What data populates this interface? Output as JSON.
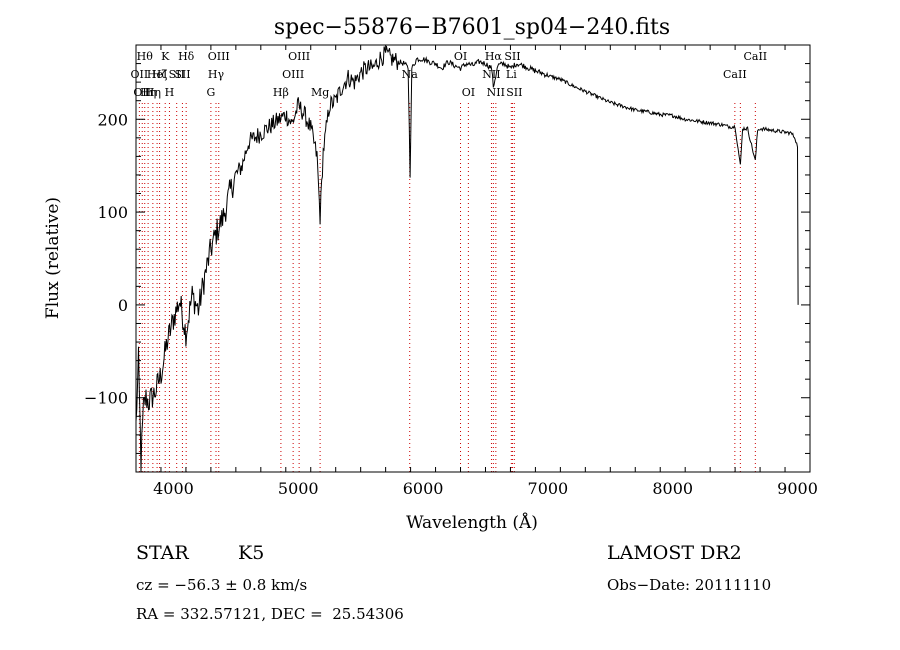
{
  "chart_data": {
    "type": "line",
    "title": "spec−55876−B7601_sp04−240.fits",
    "xlabel": "Wavelength (Å)",
    "ylabel": "Flux (relative)",
    "xlim": [
      3700,
      9100
    ],
    "ylim": [
      -180,
      280
    ],
    "xticks": [
      4000,
      5000,
      6000,
      7000,
      8000,
      9000
    ],
    "yticks": [
      -100,
      0,
      100,
      200
    ],
    "xtick_labels": [
      "4000",
      "5000",
      "6000",
      "7000",
      "8000",
      "9000"
    ],
    "ytick_labels": [
      "−100",
      "0",
      "100",
      "200"
    ],
    "series": [
      {
        "color": "#000000",
        "x": [
          3700,
          3720,
          3740,
          3760,
          3780,
          3800,
          3850,
          3900,
          3950,
          4000,
          4050,
          4100,
          4150,
          4200,
          4250,
          4300,
          4350,
          4400,
          4450,
          4500,
          4550,
          4600,
          4650,
          4700,
          4750,
          4800,
          4850,
          4900,
          4950,
          5000,
          5050,
          5100,
          5150,
          5175,
          5200,
          5250,
          5300,
          5350,
          5400,
          5450,
          5500,
          5550,
          5600,
          5650,
          5700,
          5750,
          5800,
          5850,
          5880,
          5890,
          5896,
          5910,
          5950,
          6000,
          6050,
          6100,
          6150,
          6200,
          6250,
          6300,
          6350,
          6400,
          6450,
          6500,
          6550,
          6563,
          6600,
          6650,
          6700,
          6750,
          6800,
          6850,
          6900,
          6950,
          7000,
          7100,
          7200,
          7300,
          7400,
          7500,
          7600,
          7700,
          7800,
          7900,
          8000,
          8100,
          8200,
          8300,
          8400,
          8450,
          8500,
          8542,
          8560,
          8600,
          8662,
          8680,
          8700,
          8800,
          8900,
          8950,
          8980,
          9000,
          9005
        ],
        "y": [
          -130,
          -60,
          -170,
          -110,
          -100,
          -105,
          -95,
          -75,
          -40,
          -15,
          5,
          -30,
          10,
          -5,
          30,
          60,
          80,
          95,
          120,
          140,
          150,
          175,
          180,
          185,
          190,
          195,
          200,
          205,
          195,
          215,
          205,
          190,
          160,
          95,
          165,
          215,
          220,
          235,
          245,
          240,
          250,
          255,
          255,
          265,
          270,
          265,
          262,
          260,
          255,
          190,
          140,
          255,
          265,
          265,
          262,
          260,
          255,
          262,
          258,
          255,
          260,
          258,
          262,
          260,
          255,
          235,
          258,
          260,
          255,
          260,
          258,
          255,
          252,
          250,
          247,
          243,
          236,
          230,
          224,
          218,
          214,
          210,
          208,
          205,
          204,
          200,
          198,
          196,
          194,
          192,
          192,
          150,
          190,
          190,
          155,
          188,
          190,
          188,
          186,
          185,
          180,
          170,
          0
        ]
      }
    ],
    "reference_lines": [
      {
        "x": 3727,
        "label": "OII",
        "row": 1
      },
      {
        "x": 3750,
        "label": "OII",
        "row": 2
      },
      {
        "x": 3770,
        "label": "Hθ",
        "row": 0
      },
      {
        "x": 3797,
        "label": "Hη",
        "row": 2
      },
      {
        "x": 3835,
        "label": "Hη",
        "row": 2
      },
      {
        "x": 3869,
        "label": "HeI",
        "row": 1
      },
      {
        "x": 3889,
        "label": "Hζ",
        "row": 1
      },
      {
        "x": 3934,
        "label": "K",
        "row": 0
      },
      {
        "x": 3968,
        "label": "H",
        "row": 2
      },
      {
        "x": 4026,
        "label": "SII",
        "row": 1
      },
      {
        "x": 4072,
        "label": "SII",
        "row": 1
      },
      {
        "x": 4102,
        "label": "Hδ",
        "row": 0
      },
      {
        "x": 4300,
        "label": "G",
        "row": 2
      },
      {
        "x": 4341,
        "label": "Hγ",
        "row": 1
      },
      {
        "x": 4363,
        "label": "OIII",
        "row": 0
      },
      {
        "x": 4861,
        "label": "Hβ",
        "row": 2
      },
      {
        "x": 4959,
        "label": "OIII",
        "row": 1
      },
      {
        "x": 5007,
        "label": "OIII",
        "row": 0
      },
      {
        "x": 5175,
        "label": "Mg",
        "row": 2
      },
      {
        "x": 5893,
        "label": "Na",
        "row": 1
      },
      {
        "x": 6300,
        "label": "OI",
        "row": 0
      },
      {
        "x": 6363,
        "label": "OI",
        "row": 2
      },
      {
        "x": 6548,
        "label": "NII",
        "row": 1
      },
      {
        "x": 6563,
        "label": "Hα",
        "row": 0
      },
      {
        "x": 6583,
        "label": "NII",
        "row": 2
      },
      {
        "x": 6707,
        "label": "Li",
        "row": 1
      },
      {
        "x": 6716,
        "label": "SII",
        "row": 0
      },
      {
        "x": 6731,
        "label": "SII",
        "row": 2
      },
      {
        "x": 8498,
        "label": "CaII",
        "row": 1
      },
      {
        "x": 8542,
        "label": "",
        "row": 1
      },
      {
        "x": 8662,
        "label": "CaII",
        "row": 0
      }
    ],
    "reference_color": "#cc0000",
    "grid": false
  },
  "info": {
    "class": "STAR",
    "subclass": "K5",
    "survey": "LAMOST DR2",
    "cz": "cz = −56.3 ± 0.8 km/s",
    "obs_date": "Obs−Date: 20111110",
    "coords": "RA = 332.57121, DEC =  25.54306"
  }
}
